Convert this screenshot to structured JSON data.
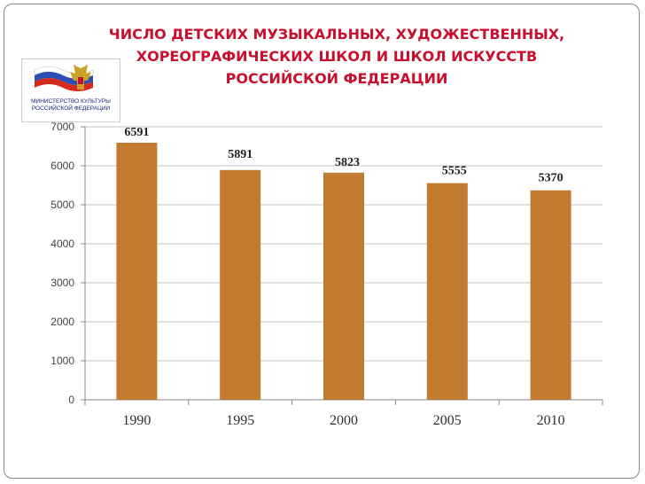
{
  "header": {
    "title_lines": [
      "ЧИСЛО ДЕТСКИХ МУЗЫКАЛЬНЫХ, ХУДОЖЕСТВЕННЫХ,",
      "ХОРЕОГРАФИЧЕСКИХ ШКОЛ И ШКОЛ ИСКУССТВ",
      "РОССИЙСКОЙ ФЕДЕРАЦИИ"
    ]
  },
  "logo": {
    "caption_lines": [
      "МИНИСТЕРСТВО КУЛЬТУРЫ",
      "РОССИЙСКОЙ ФЕДЕРАЦИИ"
    ],
    "flag_colors": [
      "#ffffff",
      "#2b4fb3",
      "#d52b1e"
    ],
    "emblem_color": "#c9a227",
    "icon": "russian-coat-of-arms-icon"
  },
  "chart_data": {
    "type": "bar",
    "title": "ЧИСЛО ДЕТСКИХ МУЗЫКАЛЬНЫХ, ХУДОЖЕСТВЕННЫХ, ХОРЕОГРАФИЧЕСКИХ ШКОЛ И ШКОЛ ИСКУССТВ РОССИЙСКОЙ ФЕДЕРАЦИИ",
    "categories": [
      "1990",
      "1995",
      "2000",
      "2005",
      "2010"
    ],
    "values": [
      6591,
      5891,
      5823,
      5555,
      5370
    ],
    "data_labels": [
      "6591",
      "5891",
      "5823",
      "5555",
      "5370"
    ],
    "ylim": [
      0,
      7000
    ],
    "yticks": [
      0,
      1000,
      2000,
      3000,
      4000,
      5000,
      6000,
      7000
    ],
    "ytick_labels": [
      "0",
      "1000",
      "2000",
      "3000",
      "4000",
      "5000",
      "6000",
      "7000"
    ],
    "xlabel": "",
    "ylabel": "",
    "grid": true,
    "legend": "none",
    "bar_color": "#c27b31",
    "gridline_color": "#c0c0c0"
  }
}
